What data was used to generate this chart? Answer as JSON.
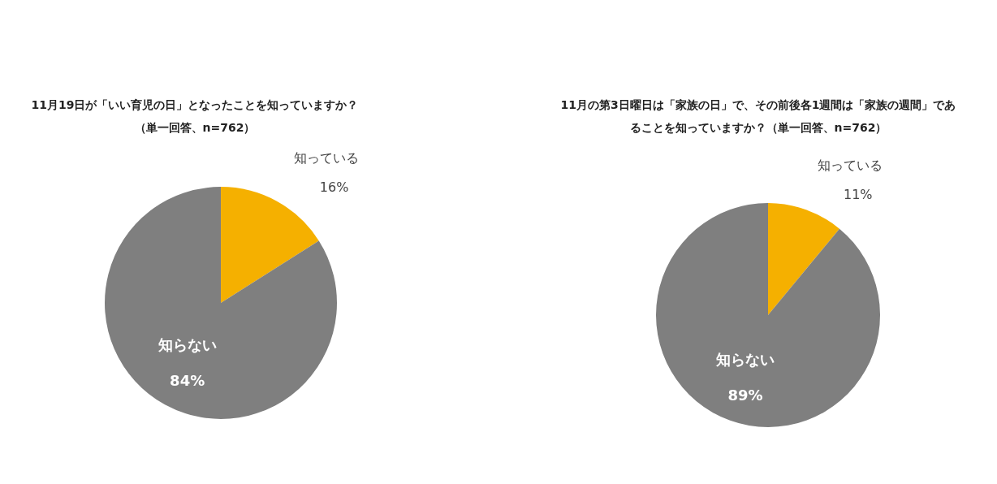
{
  "chart_data": [
    {
      "type": "pie",
      "title": "11月19日が「いい育児の日」となったことを知っていますか？",
      "subtitle": "（単一回答、n=762）",
      "categories": [
        "知っている",
        "知らない"
      ],
      "values": [
        16,
        84
      ],
      "value_labels": [
        "16%",
        "84%"
      ],
      "colors": [
        "#f5b000",
        "#7f7f7f"
      ],
      "legend": false
    },
    {
      "type": "pie",
      "title": "11月の第3日曜日は「家族の日」で、その前後各1週間は「家族の週間」であることを知っていますか？（単一回答、n=762）",
      "categories": [
        "知っている",
        "知らない"
      ],
      "values": [
        11,
        89
      ],
      "value_labels": [
        "11%",
        "89%"
      ],
      "colors": [
        "#f5b000",
        "#7f7f7f"
      ],
      "legend": false
    }
  ]
}
